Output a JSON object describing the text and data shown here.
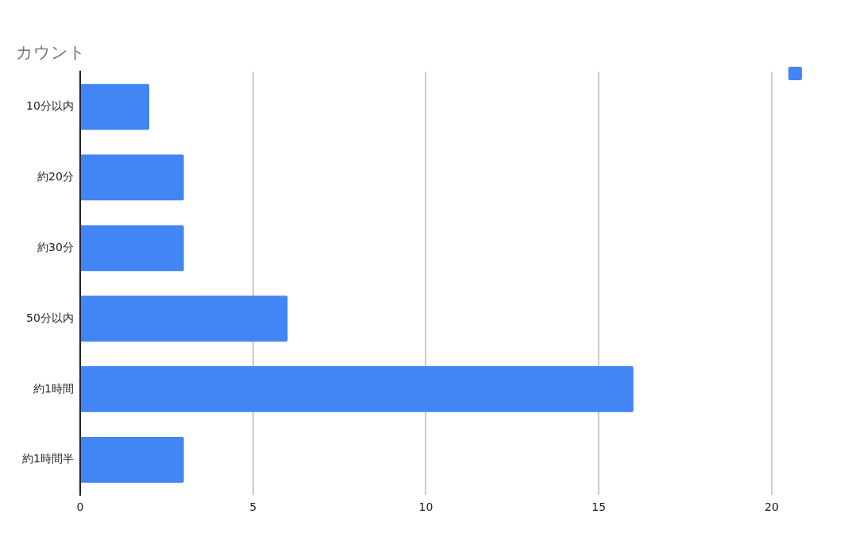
{
  "chart_data": {
    "type": "bar",
    "orientation": "horizontal",
    "title": "カウント",
    "categories": [
      "10分以内",
      "約20分",
      "約30分",
      "50分以内",
      "約1時間",
      "約1時間半"
    ],
    "series": [
      {
        "color": "#4285f4",
        "values": [
          2,
          3,
          3,
          6,
          16,
          3
        ]
      }
    ],
    "xlim": [
      0,
      20
    ],
    "xticks": [
      0,
      5,
      10,
      15,
      20
    ],
    "grid": "x"
  }
}
